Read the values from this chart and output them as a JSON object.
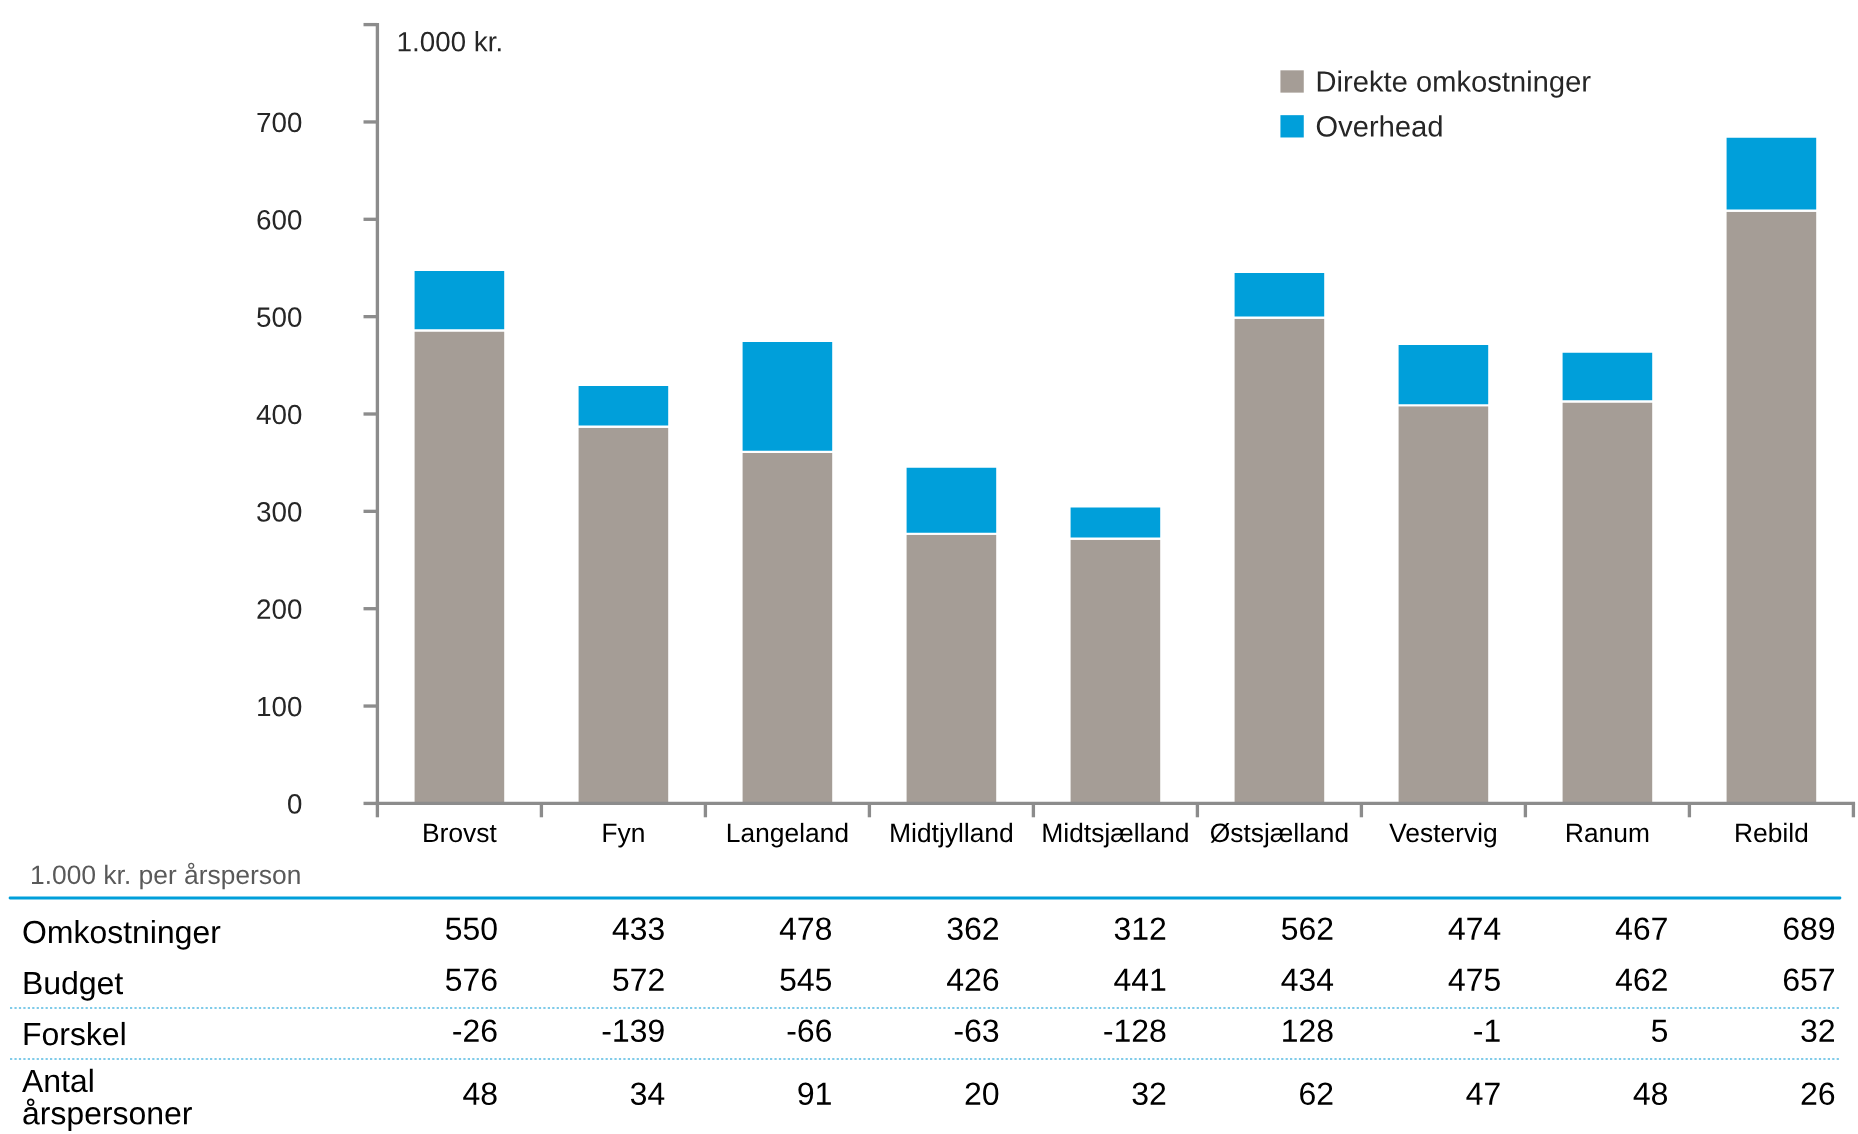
{
  "chart_data": [
    {
      "type": "bar",
      "stacked": true,
      "ylabel": "1.000 kr.",
      "categories": [
        "Brovst",
        "Fyn",
        "Langeland",
        "Midtjylland",
        "Midtsjælland",
        "Østsjælland",
        "Vestervig",
        "Ranum",
        "Rebild"
      ],
      "series": [
        {
          "name": "Direkte omkostninger",
          "color": "#a59d96",
          "values": [
            486,
            387,
            361,
            277,
            272,
            499,
            409,
            413,
            609
          ]
        },
        {
          "name": "Overhead",
          "color": "#009fda",
          "values": [
            62,
            43,
            114,
            69,
            33,
            47,
            63,
            51,
            76
          ]
        }
      ],
      "ylim": [
        0,
        800
      ],
      "yticks": [
        0,
        100,
        200,
        300,
        400,
        500,
        600,
        700,
        {
          "value": 800,
          "label": null
        }
      ],
      "legend": "top right"
    },
    {
      "type": "heatmap",
      "title": "1.000 kr. per årsperson",
      "categories": [
        null,
        null,
        null,
        null,
        null,
        null,
        null,
        null,
        null
      ],
      "y_categories": [
        "Omkostninger",
        "Budget",
        "Forskel",
        "Antal\nårspersoner"
      ],
      "cells": [
        [
          550,
          433,
          478,
          362,
          312,
          562,
          474,
          467,
          689
        ],
        [
          576,
          572,
          545,
          426,
          441,
          434,
          475,
          462,
          657
        ],
        [
          -26,
          -139,
          -66,
          -63,
          -128,
          128,
          -1,
          5,
          32
        ],
        [
          48,
          34,
          91,
          20,
          32,
          62,
          47,
          48,
          26
        ]
      ],
      "data_labels": true
    }
  ]
}
